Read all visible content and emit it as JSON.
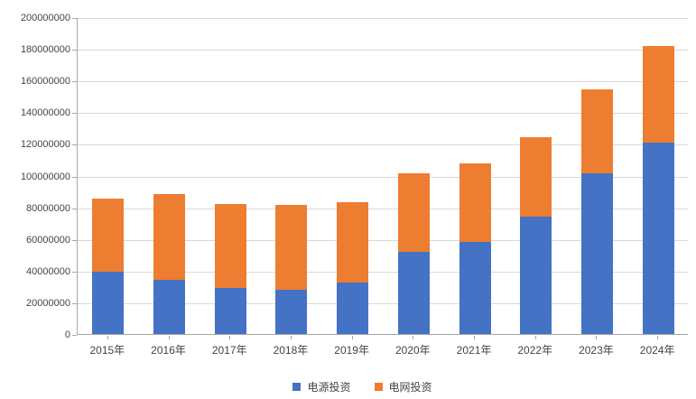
{
  "chart_data": {
    "type": "bar",
    "stacked": true,
    "title": "",
    "xlabel": "",
    "ylabel": "",
    "categories": [
      "2015年",
      "2016年",
      "2017年",
      "2018年",
      "2019年",
      "2020年",
      "2021年",
      "2022年",
      "2023年",
      "2024年"
    ],
    "series": [
      {
        "name": "电源投资",
        "color": "#4472C4",
        "values": [
          39400000,
          34000000,
          29000000,
          27900000,
          32500000,
          52000000,
          58000000,
          74300000,
          101600000,
          120600000
        ]
      },
      {
        "name": "电网投资",
        "color": "#ED7D31",
        "values": [
          46000000,
          54300000,
          53200000,
          53700000,
          50500000,
          49700000,
          49500000,
          50200000,
          53000000,
          61200000
        ]
      }
    ],
    "totals": [
      85400000,
      88300000,
      82200000,
      81600000,
      83000000,
      101700000,
      107500000,
      124500000,
      154600000,
      181800000
    ],
    "ylim": [
      0,
      200000000
    ],
    "ytick_step": 20000000,
    "ytick_labels": [
      "0",
      "20000000",
      "40000000",
      "60000000",
      "80000000",
      "100000000",
      "120000000",
      "140000000",
      "160000000",
      "180000000",
      "200000000"
    ],
    "grid": true,
    "legend_position": "bottom"
  },
  "colors": {
    "background": "#FFFFFF",
    "gridline": "#D9D9D9",
    "axis": "#A6A6A6",
    "label_text": "#444444",
    "series_blue": "#4472C4",
    "series_orange": "#ED7D31"
  }
}
